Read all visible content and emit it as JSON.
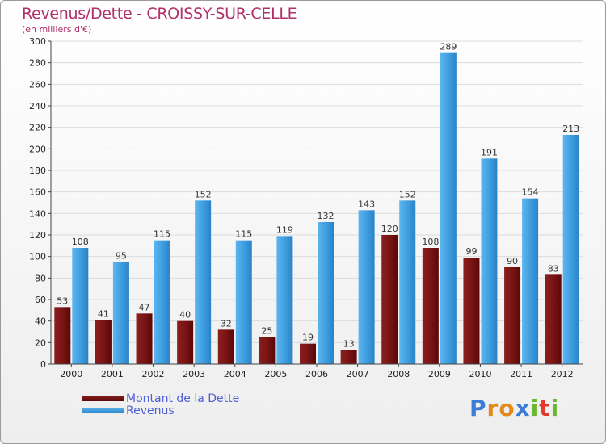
{
  "header": {
    "title": "Revenus/Dette - CROISSY-SUR-CELLE",
    "subtitle": "(en milliers d'€)"
  },
  "chart_data": {
    "type": "bar",
    "categories": [
      "2000",
      "2001",
      "2002",
      "2003",
      "2004",
      "2005",
      "2006",
      "2007",
      "2008",
      "2009",
      "2010",
      "2011",
      "2012"
    ],
    "series": [
      {
        "name": "Montant de la Dette",
        "color": "#7a1515",
        "values": [
          53,
          41,
          47,
          40,
          32,
          25,
          19,
          13,
          120,
          108,
          99,
          90,
          83
        ]
      },
      {
        "name": "Revenus",
        "color": "#3f9fe0",
        "values": [
          108,
          95,
          115,
          152,
          115,
          119,
          132,
          143,
          152,
          289,
          191,
          154,
          213
        ]
      }
    ],
    "ylim": [
      0,
      300
    ],
    "yticks": [
      0,
      20,
      40,
      60,
      80,
      100,
      120,
      140,
      160,
      180,
      200,
      220,
      240,
      260,
      280,
      300
    ],
    "grid": true,
    "legend_position": "bottom-left",
    "xlabel": "",
    "ylabel": ""
  },
  "branding": {
    "letters": [
      "P",
      "r",
      "o",
      "x",
      "i",
      "t",
      "i"
    ],
    "colors": [
      "#3a7fd5",
      "#e28a1e",
      "#e28a1e",
      "#3a7fd5",
      "#6bb630",
      "#e23a2a",
      "#6bb630"
    ]
  }
}
